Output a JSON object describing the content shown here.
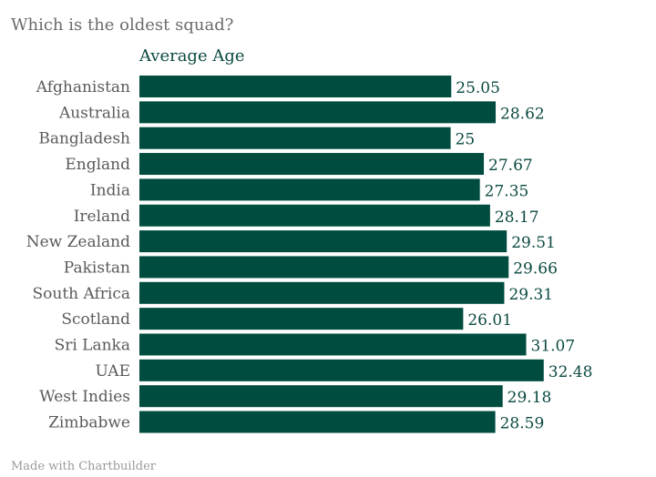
{
  "chart_data": {
    "type": "bar",
    "orientation": "horizontal",
    "title": "Which is the oldest squad?",
    "series": [
      {
        "name": "Average Age",
        "values": [
          25.05,
          28.62,
          25,
          27.67,
          27.35,
          28.17,
          29.51,
          29.66,
          29.31,
          26.01,
          31.07,
          32.48,
          29.18,
          28.59
        ]
      }
    ],
    "categories": [
      "Afghanistan",
      "Australia",
      "Bangladesh",
      "England",
      "India",
      "Ireland",
      "New Zealand",
      "Pakistan",
      "South Africa",
      "Scotland",
      "Sri Lanka",
      "UAE",
      "West Indies",
      "Zimbabwe"
    ],
    "value_labels": [
      "25.05",
      "28.62",
      "25",
      "27.67",
      "27.35",
      "28.17",
      "29.51",
      "29.66",
      "29.31",
      "26.01",
      "31.07",
      "32.48",
      "29.18",
      "28.59"
    ],
    "xlim": [
      0,
      34.18
    ],
    "grid": false,
    "bar_color": "#004d40"
  },
  "footer": {
    "credit": "Made with Chartbuilder"
  }
}
